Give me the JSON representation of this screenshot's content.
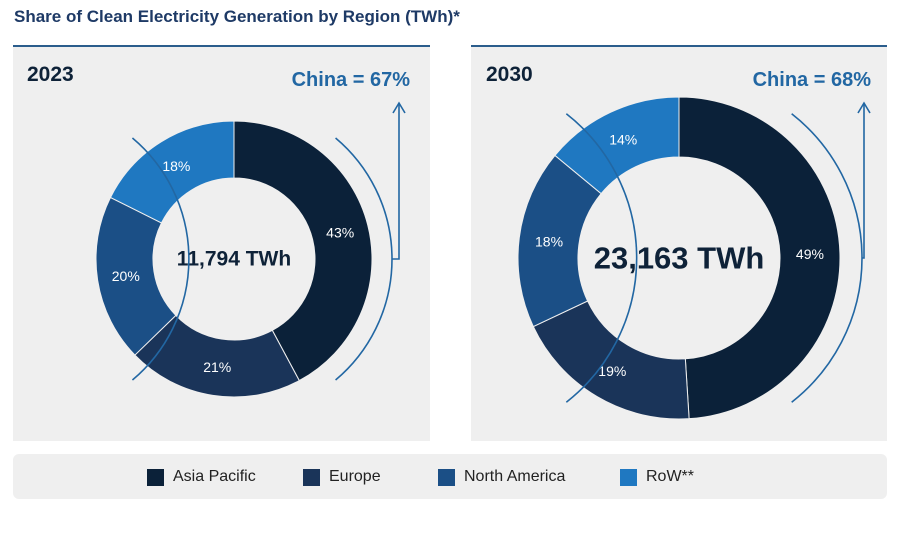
{
  "title": "Share of Clean Electricity Generation by Region (TWh)*",
  "colors": {
    "asia_pacific": "#0b2139",
    "europe": "#1a3459",
    "north_america": "#1b4f86",
    "row": "#1f78c1",
    "accent": "#2267a3"
  },
  "chart_data": [
    {
      "type": "pie",
      "style": "donut",
      "year": "2023",
      "annotation": "China = 67%",
      "center_label": "11,794 TWh",
      "categories": [
        "Asia Pacific",
        "Europe",
        "North America",
        "RoW**"
      ],
      "values": [
        43,
        21,
        20,
        18
      ],
      "value_labels": [
        "43%",
        "21%",
        "20%",
        "18%"
      ]
    },
    {
      "type": "pie",
      "style": "donut",
      "year": "2030",
      "annotation": "China = 68%",
      "center_label": "23,163 TWh",
      "categories": [
        "Asia Pacific",
        "Europe",
        "North America",
        "RoW**"
      ],
      "values": [
        49,
        19,
        18,
        14
      ],
      "value_labels": [
        "49%",
        "19%",
        "18%",
        "14%"
      ]
    }
  ],
  "legend": [
    {
      "label": "Asia Pacific",
      "color_key": "asia_pacific"
    },
    {
      "label": "Europe",
      "color_key": "europe"
    },
    {
      "label": "North America",
      "color_key": "north_america"
    },
    {
      "label": "RoW**",
      "color_key": "row"
    }
  ]
}
